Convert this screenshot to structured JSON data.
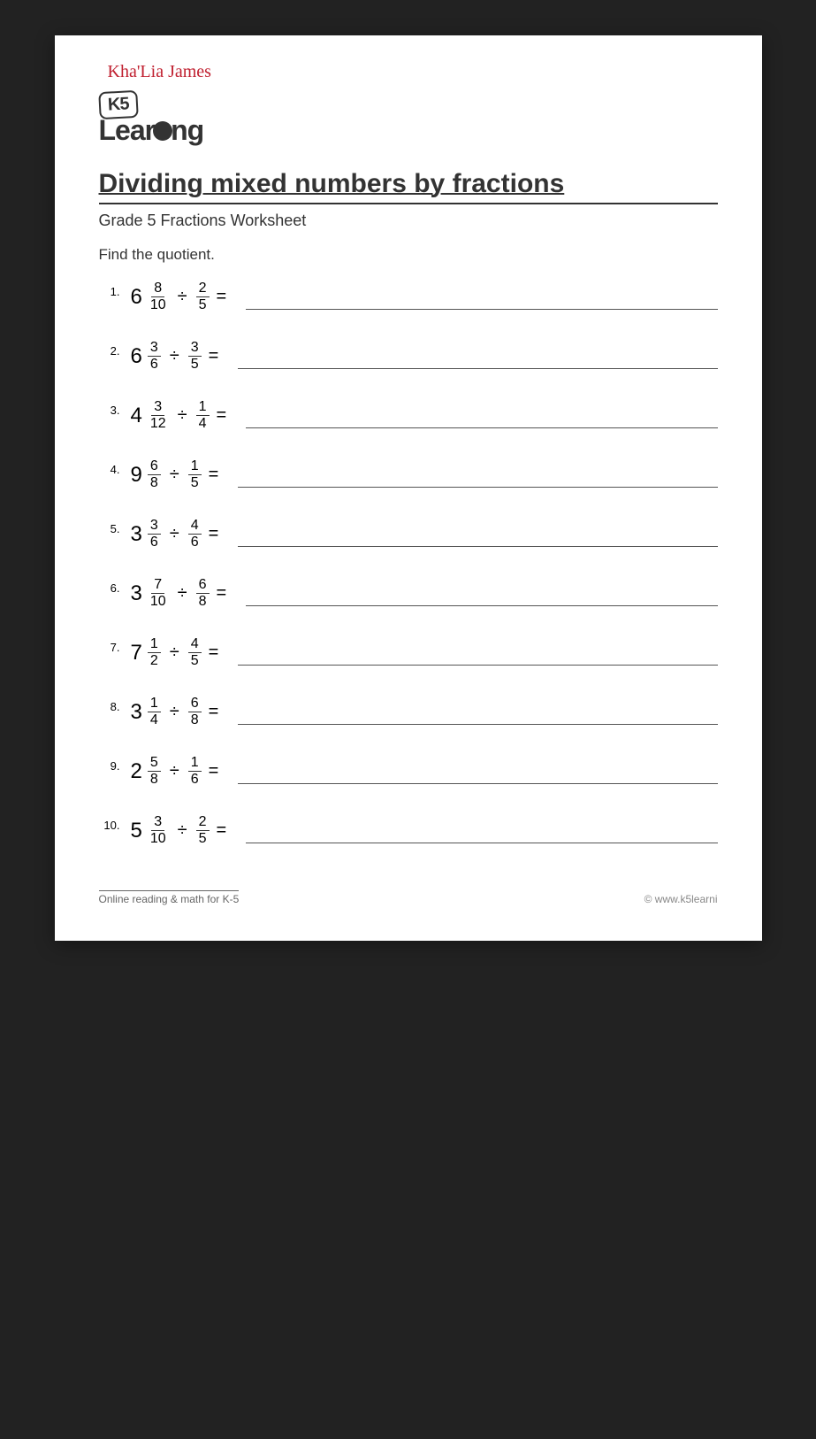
{
  "student_name": "Kha'Lia James",
  "logo": {
    "badge": "K5",
    "text_prefix": "Lear",
    "text_suffix": "ng"
  },
  "title": "Dividing mixed numbers by fractions",
  "subtitle": "Grade 5 Fractions Worksheet",
  "instruction": "Find the quotient.",
  "problems": [
    {
      "n": "1.",
      "whole": "6",
      "num1": "8",
      "den1": "10",
      "num2": "2",
      "den2": "5"
    },
    {
      "n": "2.",
      "whole": "6",
      "num1": "3",
      "den1": "6",
      "num2": "3",
      "den2": "5"
    },
    {
      "n": "3.",
      "whole": "4",
      "num1": "3",
      "den1": "12",
      "num2": "1",
      "den2": "4"
    },
    {
      "n": "4.",
      "whole": "9",
      "num1": "6",
      "den1": "8",
      "num2": "1",
      "den2": "5"
    },
    {
      "n": "5.",
      "whole": "3",
      "num1": "3",
      "den1": "6",
      "num2": "4",
      "den2": "6"
    },
    {
      "n": "6.",
      "whole": "3",
      "num1": "7",
      "den1": "10",
      "num2": "6",
      "den2": "8"
    },
    {
      "n": "7.",
      "whole": "7",
      "num1": "1",
      "den1": "2",
      "num2": "4",
      "den2": "5"
    },
    {
      "n": "8.",
      "whole": "3",
      "num1": "1",
      "den1": "4",
      "num2": "6",
      "den2": "8"
    },
    {
      "n": "9.",
      "whole": "2",
      "num1": "5",
      "den1": "8",
      "num2": "1",
      "den2": "6"
    },
    {
      "n": "10.",
      "whole": "5",
      "num1": "3",
      "den1": "10",
      "num2": "2",
      "den2": "5"
    }
  ],
  "operator": "÷",
  "equals": "=",
  "footer": {
    "left": "Online reading & math for K-5",
    "right": "© www.k5learni"
  },
  "colors": {
    "page_bg": "#ffffff",
    "text": "#333333",
    "handwriting": "#c02030",
    "rule": "#555555"
  },
  "typography": {
    "title_fontsize": 30,
    "subtitle_fontsize": 18,
    "problem_fontsize": 22,
    "frac_fontsize": 16,
    "footer_fontsize": 12
  }
}
